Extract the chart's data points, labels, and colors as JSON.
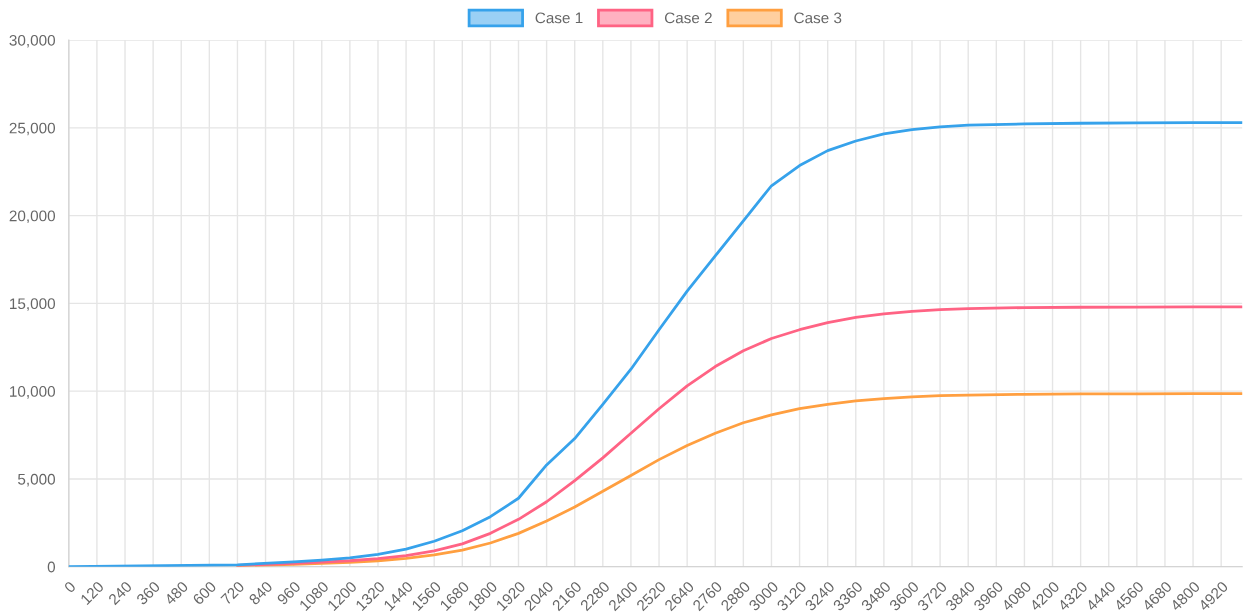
{
  "chart_data": {
    "type": "line",
    "x": [
      0,
      720,
      960,
      1080,
      1200,
      1320,
      1440,
      1560,
      1680,
      1800,
      1920,
      2040,
      2160,
      2280,
      2400,
      2520,
      2640,
      2760,
      2880,
      3000,
      3120,
      3240,
      3360,
      3480,
      3600,
      3720,
      3840,
      4080,
      4320,
      4560,
      4800,
      5010
    ],
    "series": [
      {
        "name": "Case 1",
        "color": "#36a2eb",
        "values": [
          0,
          110,
          280,
          380,
          500,
          700,
          1000,
          1450,
          2050,
          2850,
          3900,
          5800,
          7300,
          9250,
          11250,
          13500,
          15700,
          17700,
          19700,
          21700,
          22850,
          23700,
          24250,
          24650,
          24900,
          25050,
          25150,
          25220,
          25260,
          25280,
          25290,
          25300
        ]
      },
      {
        "name": "Case 2",
        "color": "#ff6384",
        "values": [
          null,
          80,
          190,
          260,
          340,
          460,
          630,
          900,
          1300,
          1900,
          2700,
          3700,
          4900,
          6200,
          7600,
          9000,
          10300,
          11400,
          12300,
          13000,
          13500,
          13900,
          14200,
          14400,
          14550,
          14650,
          14700,
          14760,
          14780,
          14790,
          14800,
          14800
        ]
      },
      {
        "name": "Case 3",
        "color": "#ff9f40",
        "values": [
          null,
          60,
          140,
          190,
          250,
          340,
          470,
          680,
          950,
          1350,
          1900,
          2600,
          3400,
          4300,
          5200,
          6100,
          6900,
          7600,
          8200,
          8650,
          9000,
          9250,
          9450,
          9580,
          9680,
          9750,
          9780,
          9820,
          9840,
          9850,
          9860,
          9860
        ]
      }
    ],
    "xlim": [
      0,
      5010
    ],
    "xticks": [
      0,
      120,
      240,
      360,
      480,
      600,
      720,
      840,
      960,
      1080,
      1200,
      1320,
      1440,
      1560,
      1680,
      1800,
      1920,
      2040,
      2160,
      2280,
      2400,
      2520,
      2640,
      2760,
      2880,
      3000,
      3120,
      3240,
      3360,
      3480,
      3600,
      3720,
      3840,
      3960,
      4080,
      4200,
      4320,
      4440,
      4560,
      4680,
      4800,
      4920
    ],
    "ylim": [
      0,
      30000
    ],
    "yticks": [
      0,
      {
        "value": 5000,
        "label": "5,000"
      },
      {
        "value": 10000,
        "label": "10,000"
      },
      {
        "value": 15000,
        "label": "15,000"
      },
      {
        "value": 20000,
        "label": "20,000"
      },
      {
        "value": 25000,
        "label": "25,000"
      },
      {
        "value": 30000,
        "label": "30,000"
      }
    ],
    "grid": true,
    "legend": "top",
    "marker": "none",
    "line_style": "solid"
  }
}
